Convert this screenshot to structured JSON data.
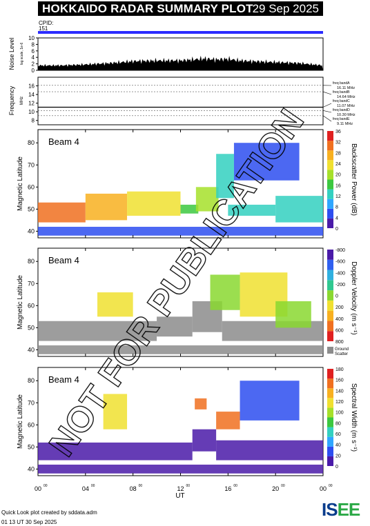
{
  "header": {
    "title": "HOKKAIDO RADAR SUMMARY PLOT",
    "date": "29 Sep 2025"
  },
  "cpid": {
    "label": "CPID:",
    "value": "151"
  },
  "footer": {
    "credit": "Quick Look plot created by sddata.adm",
    "timestamp": "01 13 UT 30 Sep 2025"
  },
  "logo": {
    "text": "ISEE"
  },
  "watermark": "NOT FOR PUBLICATION",
  "colors": {
    "cpid_bar": "#2b2bff",
    "ground_scatter": "#8c8c8c",
    "frame": "#000000"
  },
  "chart_data": [
    {
      "type": "area",
      "ylabel": "Noise Level",
      "ylabel_sub": "log scale, 1e-6",
      "ylim": [
        0,
        10
      ],
      "yticks": [
        0,
        2,
        4,
        6,
        8,
        10
      ],
      "x": [
        0,
        2,
        4,
        6,
        8,
        10,
        12,
        13,
        14,
        15,
        16,
        17,
        18,
        20,
        22,
        24
      ],
      "values": [
        1.5,
        1.5,
        1.8,
        2.2,
        2.8,
        3.0,
        3.0,
        3.3,
        3.6,
        3.3,
        3.5,
        3.0,
        2.8,
        2.5,
        2.2,
        1.5
      ]
    },
    {
      "type": "line",
      "ylabel": "Frequency",
      "yunit": "MHz",
      "ylim": [
        7,
        18
      ],
      "yticks": [
        8,
        10,
        12,
        14,
        16
      ],
      "bands": [
        {
          "name": "freq bandA",
          "mhz": "16.11 MHz",
          "value": 16.11
        },
        {
          "name": "freq bandB",
          "mhz": "14.64 MHz",
          "value": 14.64
        },
        {
          "name": "freq bandC",
          "mhz": "11.07 MHz",
          "value": 11.07
        },
        {
          "name": "freq bandD",
          "mhz": "10.30 MHz",
          "value": 10.3
        },
        {
          "name": "freq bandE",
          "mhz": "9.11 MHz",
          "value": 9.11
        }
      ],
      "series": [
        {
          "x": [
            0,
            24
          ],
          "values": [
            11.07,
            11.07
          ]
        }
      ]
    },
    {
      "type": "heatmap",
      "panel_label": "Beam  4",
      "ylabel": "Magnetic Latitude",
      "ylim": [
        37,
        86
      ],
      "yticks": [
        40,
        50,
        60,
        70,
        80
      ],
      "colorbar": {
        "label": "Backscatter Power (dB)",
        "ticks": [
          "0",
          "4",
          "8",
          "12",
          "16",
          "20",
          "24",
          "28",
          "32",
          "36"
        ],
        "min": 0,
        "max": 38,
        "scale": [
          "#4a1aa8",
          "#2d4ef0",
          "#2fa6ff",
          "#33d0c0",
          "#3cc840",
          "#a6e02a",
          "#f0e030",
          "#f8b020",
          "#f07020",
          "#e02020"
        ]
      },
      "echoes": [
        {
          "t0": 0.0,
          "t1": 4.0,
          "lat0": 44,
          "lat1": 53,
          "v": 32
        },
        {
          "t0": 4.0,
          "t1": 7.5,
          "lat0": 45,
          "lat1": 57,
          "v": 28
        },
        {
          "t0": 7.5,
          "t1": 12.0,
          "lat0": 47,
          "lat1": 58,
          "v": 24
        },
        {
          "t0": 12.0,
          "t1": 13.5,
          "lat0": 48,
          "lat1": 52,
          "v": 16
        },
        {
          "t0": 13.3,
          "t1": 15.2,
          "lat0": 49,
          "lat1": 60,
          "v": 20
        },
        {
          "t0": 15.0,
          "t1": 16.5,
          "lat0": 55,
          "lat1": 75,
          "v": 14
        },
        {
          "t0": 16.0,
          "t1": 20.0,
          "lat0": 47,
          "lat1": 52,
          "v": 12
        },
        {
          "t0": 16.5,
          "t1": 22.0,
          "lat0": 63,
          "lat1": 80,
          "v": 4
        },
        {
          "t0": 20.0,
          "t1": 24.0,
          "lat0": 44,
          "lat1": 56,
          "v": 12
        },
        {
          "t0": 0.0,
          "t1": 24.0,
          "lat0": 38,
          "lat1": 42,
          "v": 6
        }
      ]
    },
    {
      "type": "heatmap",
      "panel_label": "Beam  4",
      "ylabel": "Magnetic Latitude",
      "ylim": [
        37,
        86
      ],
      "yticks": [
        40,
        50,
        60,
        70,
        80
      ],
      "colorbar": {
        "label": "Doppler Velocity (m s⁻¹)",
        "ticks": [
          "800",
          "600",
          "400",
          "200",
          "0",
          "-200",
          "-400",
          "-600",
          "-800"
        ],
        "min": -900,
        "max": 900,
        "scale": [
          "#e02020",
          "#f07020",
          "#f8b020",
          "#f0e030",
          "#8ad830",
          "#30c890",
          "#30b0e0",
          "#3060f0",
          "#4a1aa8"
        ],
        "extra": "Ground Scatter"
      },
      "echoes": [
        {
          "t0": 0.0,
          "t1": 10.0,
          "lat0": 44,
          "lat1": 53,
          "v": "gs"
        },
        {
          "t0": 10.0,
          "t1": 13.0,
          "lat0": 46,
          "lat1": 55,
          "v": "gs"
        },
        {
          "t0": 13.0,
          "t1": 15.5,
          "lat0": 48,
          "lat1": 62,
          "v": "gs"
        },
        {
          "t0": 15.5,
          "t1": 24.0,
          "lat0": 44,
          "lat1": 53,
          "v": "gs"
        },
        {
          "t0": 5.0,
          "t1": 8.0,
          "lat0": 55,
          "lat1": 66,
          "v": 100
        },
        {
          "t0": 14.5,
          "t1": 17.0,
          "lat0": 58,
          "lat1": 74,
          "v": 50
        },
        {
          "t0": 17.0,
          "t1": 21.0,
          "lat0": 55,
          "lat1": 75,
          "v": 150
        },
        {
          "t0": 20.0,
          "t1": 23.0,
          "lat0": 50,
          "lat1": 62,
          "v": 80
        },
        {
          "t0": 0.0,
          "t1": 24.0,
          "lat0": 38,
          "lat1": 42,
          "v": "gs"
        }
      ]
    },
    {
      "type": "heatmap",
      "panel_label": "Beam  4",
      "ylabel": "Magnetic Latitude",
      "ylim": [
        37,
        86
      ],
      "yticks": [
        40,
        50,
        60,
        70,
        80
      ],
      "xlabel": "UT",
      "xlim": [
        0,
        24
      ],
      "xticks": [
        "00",
        "04",
        "08",
        "12",
        "16",
        "20",
        "00"
      ],
      "xtick_sup": "00",
      "colorbar": {
        "label": "Spectral Width (m s⁻¹)",
        "ticks": [
          "0",
          "20",
          "40",
          "60",
          "80",
          "100",
          "120",
          "140",
          "160",
          "180"
        ],
        "min": 0,
        "max": 190,
        "scale": [
          "#4a1aa8",
          "#2d4ef0",
          "#2fa6ff",
          "#33d0c0",
          "#3cc840",
          "#a6e02a",
          "#f0e030",
          "#f8b020",
          "#f07020",
          "#e02020"
        ]
      },
      "echoes": [
        {
          "t0": 0.0,
          "t1": 13.0,
          "lat0": 44,
          "lat1": 52,
          "v": 10
        },
        {
          "t0": 13.0,
          "t1": 15.0,
          "lat0": 48,
          "lat1": 58,
          "v": 15
        },
        {
          "t0": 15.0,
          "t1": 24.0,
          "lat0": 44,
          "lat1": 53,
          "v": 10
        },
        {
          "t0": 5.5,
          "t1": 7.5,
          "lat0": 58,
          "lat1": 74,
          "v": 130
        },
        {
          "t0": 13.2,
          "t1": 14.2,
          "lat0": 67,
          "lat1": 72,
          "v": 170
        },
        {
          "t0": 15.0,
          "t1": 17.0,
          "lat0": 58,
          "lat1": 66,
          "v": 160
        },
        {
          "t0": 17.0,
          "t1": 22.0,
          "lat0": 62,
          "lat1": 80,
          "v": 30
        },
        {
          "t0": 0.0,
          "t1": 24.0,
          "lat0": 38,
          "lat1": 42,
          "v": 8
        }
      ]
    }
  ]
}
